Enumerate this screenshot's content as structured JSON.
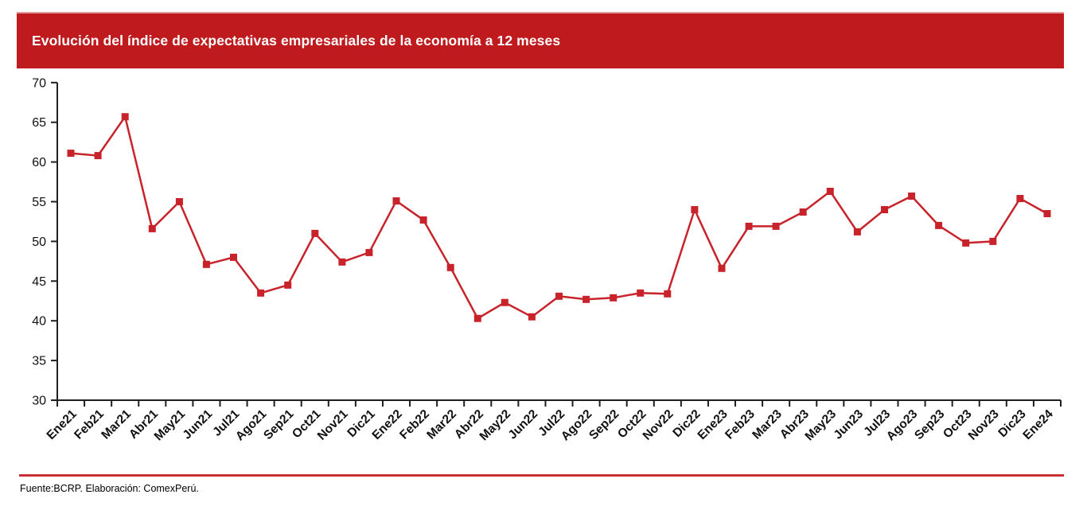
{
  "header": {
    "title": "Evolución del índice de expectativas empresariales de la economía a 12 meses",
    "banner_color": "#bf1a1e"
  },
  "footer": {
    "source": "Fuente:BCRP. Elaboración: ComexPerú.",
    "rule_color": "#cd2f36"
  },
  "chart_data": {
    "type": "line",
    "title": "Evolución del índice de expectativas empresariales de la economía a 12 meses",
    "xlabel": "",
    "ylabel": "",
    "ylim": [
      30,
      70
    ],
    "ytick_step": 5,
    "yticks": [
      30,
      35,
      40,
      45,
      50,
      55,
      60,
      65,
      70
    ],
    "grid": false,
    "legend_position": "none",
    "marker": "square",
    "line_color": "#c8222a",
    "axis_color": "#1f1f1f",
    "tick_label_color": "#111111",
    "categories": [
      "Ene21",
      "Feb21",
      "Mar21",
      "Abr21",
      "May21",
      "Jun21",
      "Jul21",
      "Ago21",
      "Sep21",
      "Oct21",
      "Nov21",
      "Dic21",
      "Ene22",
      "Feb22",
      "Mar22",
      "Abr22",
      "May22",
      "Jun22",
      "Jul22",
      "Ago22",
      "Sep22",
      "Oct22",
      "Nov22",
      "Dic22",
      "Ene23",
      "Feb23",
      "Mar23",
      "Abr23",
      "May23",
      "Jun23",
      "Jul23",
      "Ago23",
      "Sep23",
      "Oct23",
      "Nov23",
      "Dic23",
      "Ene24"
    ],
    "series": [
      {
        "name": "Índice de expectativas empresariales de la economía a 12 meses",
        "values": [
          61.1,
          60.8,
          65.7,
          51.6,
          55.0,
          47.1,
          48.0,
          43.5,
          44.5,
          51.0,
          47.4,
          48.6,
          55.1,
          52.7,
          46.7,
          40.3,
          42.3,
          40.5,
          43.1,
          42.7,
          42.9,
          43.5,
          43.4,
          54.0,
          46.6,
          51.9,
          51.9,
          53.7,
          56.3,
          51.2,
          54.0,
          55.7,
          52.0,
          49.8,
          50.0,
          55.4,
          53.5
        ]
      }
    ]
  }
}
